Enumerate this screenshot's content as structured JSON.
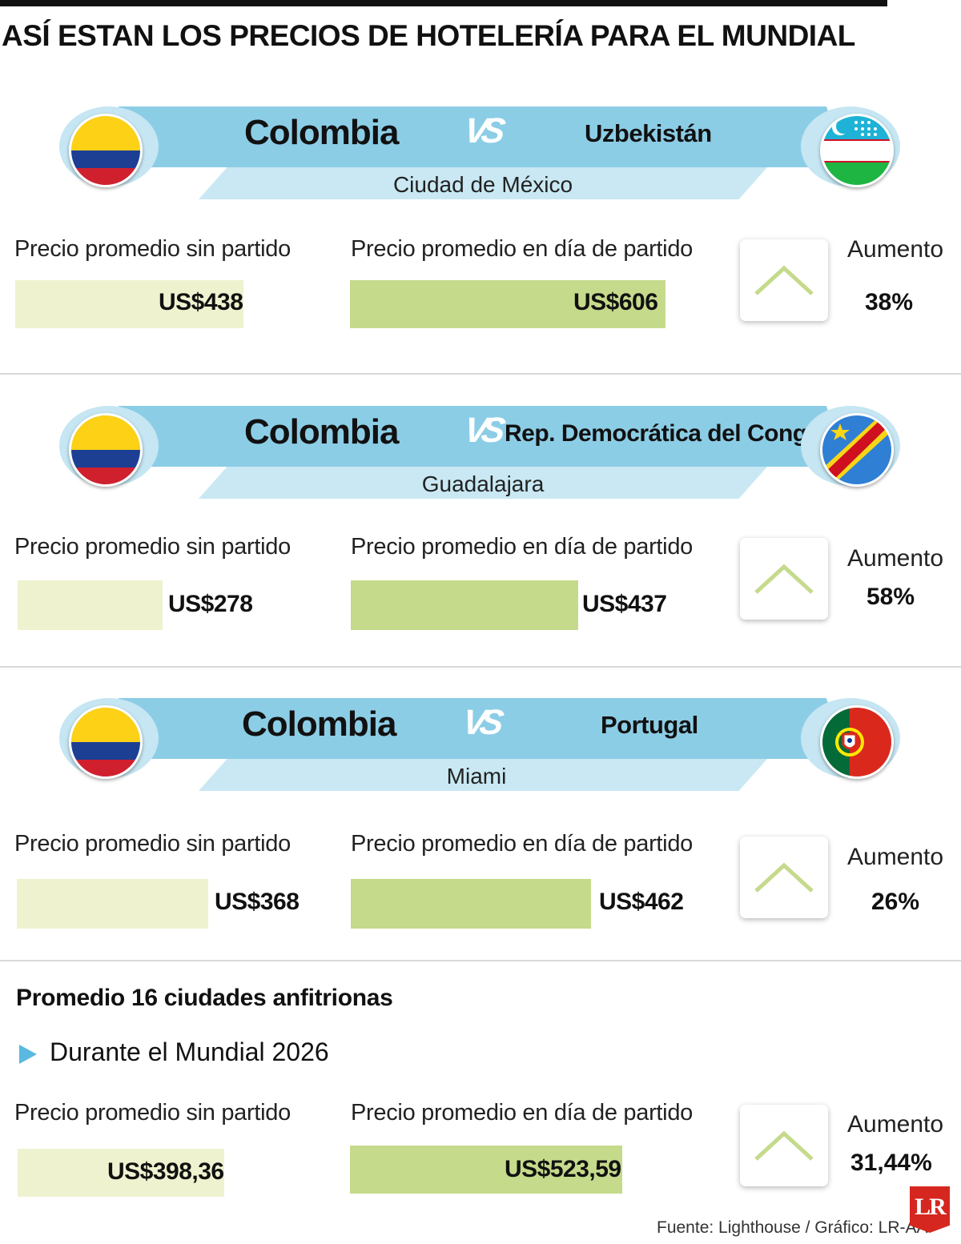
{
  "title": "ASÍ ESTAN LOS PRECIOS DE HOTELERÍA PARA EL MUNDIAL",
  "labels": {
    "vs": "VS",
    "no_match": "Precio promedio sin partido",
    "match_day": "Precio promedio en día de partido",
    "increase": "Aumento"
  },
  "colors": {
    "band": "#8ccde6",
    "city_band": "#c9e8f3",
    "bar_no_match": "#eff2cf",
    "bar_match_day": "#c5da8b",
    "arrow": "#c5da8b",
    "bullet": "#5bb8e0",
    "logo": "#d5271f"
  },
  "matches": [
    {
      "home": "Colombia",
      "away": "Uzbekistán",
      "city": "Ciudad de México",
      "home_flag": "colombia-flag-icon",
      "away_flag": "uzbekistan-flag-icon",
      "no_match_label": "US$438",
      "match_day_label": "US$606",
      "increase_label": "38%"
    },
    {
      "home": "Colombia",
      "away": "Rep. Democrática del Congo",
      "city": "Guadalajara",
      "home_flag": "colombia-flag-icon",
      "away_flag": "dr-congo-flag-icon",
      "no_match_label": "US$278",
      "match_day_label": "US$437",
      "increase_label": "58%"
    },
    {
      "home": "Colombia",
      "away": "Portugal",
      "city": "Miami",
      "home_flag": "colombia-flag-icon",
      "away_flag": "portugal-flag-icon",
      "no_match_label": "US$368",
      "match_day_label": "US$462",
      "increase_label": "26%"
    }
  ],
  "average": {
    "title": "Promedio 16 ciudades anfitrionas",
    "subtitle": "Durante el Mundial 2026",
    "no_match_label": "US$398,36",
    "match_day_label": "US$523,59",
    "increase_label": "31,44%"
  },
  "chart_data": {
    "type": "bar",
    "categories": [
      "Ciudad de México",
      "Guadalajara",
      "Miami",
      "Promedio 16 ciudades anfitrionas"
    ],
    "series": [
      {
        "name": "Precio promedio sin partido",
        "values": [
          438,
          278,
          368,
          398.36
        ]
      },
      {
        "name": "Precio promedio en día de partido",
        "values": [
          606,
          437,
          462,
          523.59
        ]
      }
    ],
    "increase_percent": [
      38,
      58,
      26,
      31.44
    ],
    "unit": "US$"
  },
  "source": "Fuente: Lighthouse / Gráfico: LR-AA",
  "logo_text": "LR"
}
